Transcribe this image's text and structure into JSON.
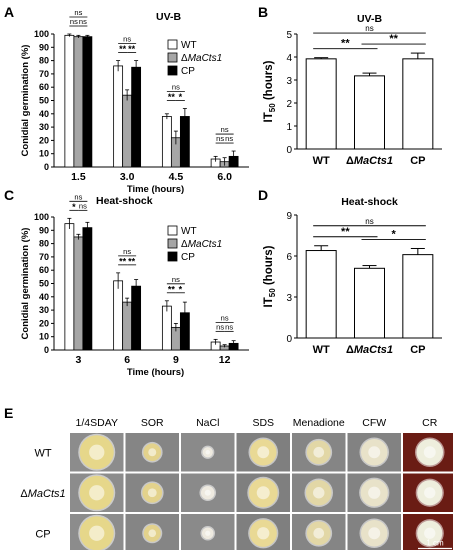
{
  "panels": {
    "A": "A",
    "B": "B",
    "C": "C",
    "D": "D",
    "E": "E"
  },
  "colors": {
    "wt": "#ffffff",
    "ko": "#a6a6a6",
    "cp": "#000000",
    "border": "#000000"
  },
  "legend": {
    "wt": "WT",
    "ko_prefix": "Δ",
    "ko_italic": "MaCts1",
    "cp": "CP"
  },
  "chart_data": [
    {
      "panel": "A",
      "type": "bar",
      "title": "UV-B",
      "xlabel": "Time (hours)",
      "ylabel": "Conidial germination (%)",
      "ylim": [
        0,
        100
      ],
      "yticks": [
        0,
        10,
        20,
        30,
        40,
        50,
        60,
        70,
        80,
        90,
        100
      ],
      "categories": [
        "1.5",
        "3.0",
        "4.5",
        "6.0"
      ],
      "series": [
        {
          "name": "WT",
          "values": [
            99,
            76,
            38,
            6
          ],
          "errors": [
            1,
            4,
            2,
            2
          ]
        },
        {
          "name": "ΔMaCts1",
          "values": [
            98,
            54,
            22,
            4
          ],
          "errors": [
            1,
            4,
            5,
            3
          ]
        },
        {
          "name": "CP",
          "values": [
            98,
            75,
            38,
            8
          ],
          "errors": [
            1,
            5,
            6,
            4
          ]
        }
      ],
      "significance": [
        {
          "group": 0,
          "labels": [
            "ns",
            "ns",
            "ns"
          ]
        },
        {
          "group": 1,
          "labels": [
            "**",
            "**",
            "ns"
          ]
        },
        {
          "group": 2,
          "labels": [
            "**",
            "*",
            "ns"
          ]
        },
        {
          "group": 3,
          "labels": [
            "ns",
            "ns",
            "ns"
          ]
        }
      ],
      "legend_position": "top-right"
    },
    {
      "panel": "B",
      "type": "bar",
      "title": "UV-B",
      "ylabel": "IT50 (hours)",
      "ylabel_main": "IT",
      "ylabel_sub": "50",
      "ylabel_rest": " (hours)",
      "ylim": [
        0,
        5
      ],
      "yticks": [
        0,
        1,
        2,
        3,
        4,
        5
      ],
      "categories": [
        "WT",
        "ΔMaCts1",
        "CP"
      ],
      "values": [
        3.92,
        3.18,
        3.92
      ],
      "errors": [
        0.05,
        0.12,
        0.25
      ],
      "significance": [
        {
          "pair": [
            0,
            1
          ],
          "label": "**"
        },
        {
          "pair": [
            1,
            2
          ],
          "label": "**"
        },
        {
          "pair": [
            0,
            2
          ],
          "label": "ns"
        }
      ]
    },
    {
      "panel": "C",
      "type": "bar",
      "title": "Heat-shock",
      "xlabel": "Time (hours)",
      "ylabel": "Conidial germination (%)",
      "ylim": [
        0,
        100
      ],
      "yticks": [
        0,
        10,
        20,
        30,
        40,
        50,
        60,
        70,
        80,
        90,
        100
      ],
      "categories": [
        "3",
        "6",
        "9",
        "12"
      ],
      "series": [
        {
          "name": "WT",
          "values": [
            95,
            52,
            33,
            6
          ],
          "errors": [
            4,
            6,
            4,
            2
          ]
        },
        {
          "name": "ΔMaCts1",
          "values": [
            85,
            36,
            17,
            3
          ],
          "errors": [
            2,
            3,
            3,
            1
          ]
        },
        {
          "name": "CP",
          "values": [
            92,
            48,
            28,
            5
          ],
          "errors": [
            4,
            5,
            8,
            2
          ]
        }
      ],
      "significance": [
        {
          "group": 0,
          "labels": [
            "*",
            "ns",
            "ns"
          ]
        },
        {
          "group": 1,
          "labels": [
            "**",
            "**",
            "ns"
          ]
        },
        {
          "group": 2,
          "labels": [
            "**",
            "*",
            "ns"
          ]
        },
        {
          "group": 3,
          "labels": [
            "ns",
            "ns",
            "ns"
          ]
        }
      ],
      "legend_position": "top-right"
    },
    {
      "panel": "D",
      "type": "bar",
      "title": "Heat-shock",
      "ylabel": "IT50 (hours)",
      "ylabel_main": "IT",
      "ylabel_sub": "50",
      "ylabel_rest": " (hours)",
      "ylim": [
        0,
        9
      ],
      "yticks": [
        0,
        3,
        6,
        9
      ],
      "categories": [
        "WT",
        "ΔMaCts1",
        "CP"
      ],
      "values": [
        6.4,
        5.1,
        6.1
      ],
      "errors": [
        0.35,
        0.2,
        0.45
      ],
      "significance": [
        {
          "pair": [
            0,
            1
          ],
          "label": "**"
        },
        {
          "pair": [
            1,
            2
          ],
          "label": "*"
        },
        {
          "pair": [
            0,
            2
          ],
          "label": "ns"
        }
      ]
    }
  ],
  "stress_panel": {
    "columns": [
      "1/4SDAY",
      "SOR",
      "NaCl",
      "SDS",
      "Menadione",
      "CFW",
      "CR"
    ],
    "rows": [
      {
        "prefix": "",
        "italic": "",
        "label": "WT"
      },
      {
        "prefix": "Δ",
        "italic": "MaCts1",
        "label": ""
      },
      {
        "prefix": "",
        "italic": "",
        "label": "CP"
      }
    ],
    "scale_bar": "1 cm",
    "plate_colors": [
      "#8c8c8c",
      "#858585",
      "#8a8a8a",
      "#7f7f7f",
      "#858585",
      "#828282",
      "#6a1c14"
    ],
    "colony_colors": [
      "#e6d78a",
      "#e3d28c",
      "#eeeae0",
      "#e9d995",
      "#e2d7a6",
      "#e8e2c9",
      "#eeeedd"
    ],
    "colony_sizes": [
      [
        1.0,
        0.52,
        0.3,
        0.78,
        0.7,
        0.78,
        0.78
      ],
      [
        1.0,
        0.58,
        0.4,
        0.85,
        0.75,
        0.8,
        0.74
      ],
      [
        1.0,
        0.5,
        0.34,
        0.8,
        0.7,
        0.78,
        0.74
      ]
    ]
  }
}
